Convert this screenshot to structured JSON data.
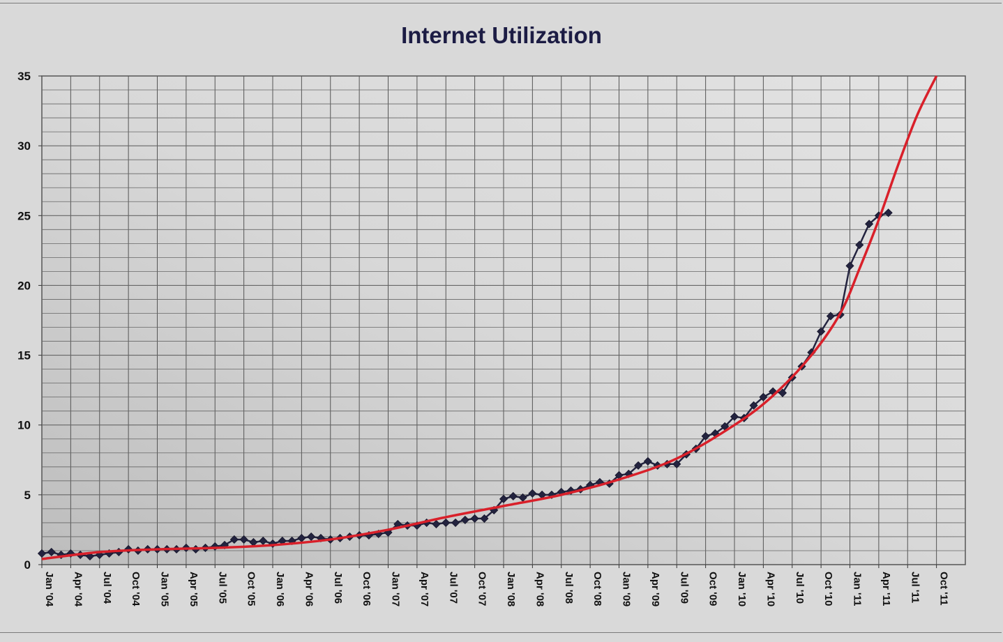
{
  "chart_data": {
    "type": "line",
    "title": "Internet Utilization",
    "xlabel": "",
    "ylabel": "",
    "ylim": [
      0,
      35
    ],
    "yticks": [
      0,
      5,
      10,
      15,
      20,
      25,
      30,
      35
    ],
    "xlim": [
      "2004-01",
      "2011-12"
    ],
    "x_tick_labels": [
      "Jan '04",
      "Apr '04",
      "Jul '04",
      "Oct '04",
      "Jan '05",
      "Apr '05",
      "Jul '05",
      "Oct '05",
      "Jan '06",
      "Apr '06",
      "Jul '06",
      "Oct '06",
      "Jan '07",
      "Apr '07",
      "Jul '07",
      "Oct '07",
      "Jan '08",
      "Apr '08",
      "Jul '08",
      "Oct '08",
      "Jan '09",
      "Apr '09",
      "Jul '09",
      "Oct '09",
      "Jan '10",
      "Apr '10",
      "Jul '10",
      "Oct '10",
      "Jan '11",
      "Apr '11",
      "Jul '11",
      "Oct '11"
    ],
    "grid": true,
    "legend": "none",
    "series": [
      {
        "color": "#23233f",
        "marker": "diamond",
        "x": [
          "2004-01",
          "2004-02",
          "2004-03",
          "2004-04",
          "2004-05",
          "2004-06",
          "2004-07",
          "2004-08",
          "2004-09",
          "2004-10",
          "2004-11",
          "2004-12",
          "2005-01",
          "2005-02",
          "2005-03",
          "2005-04",
          "2005-05",
          "2005-06",
          "2005-07",
          "2005-08",
          "2005-09",
          "2005-10",
          "2005-11",
          "2005-12",
          "2006-01",
          "2006-02",
          "2006-03",
          "2006-04",
          "2006-05",
          "2006-06",
          "2006-07",
          "2006-08",
          "2006-09",
          "2006-10",
          "2006-11",
          "2006-12",
          "2007-01",
          "2007-02",
          "2007-03",
          "2007-04",
          "2007-05",
          "2007-06",
          "2007-07",
          "2007-08",
          "2007-09",
          "2007-10",
          "2007-11",
          "2007-12",
          "2008-01",
          "2008-02",
          "2008-03",
          "2008-04",
          "2008-05",
          "2008-06",
          "2008-07",
          "2008-08",
          "2008-09",
          "2008-10",
          "2008-11",
          "2008-12",
          "2009-01",
          "2009-02",
          "2009-03",
          "2009-04",
          "2009-05",
          "2009-06",
          "2009-07",
          "2009-08",
          "2009-09",
          "2009-10",
          "2009-11",
          "2009-12",
          "2010-01",
          "2010-02",
          "2010-03",
          "2010-04",
          "2010-05",
          "2010-06",
          "2010-07",
          "2010-08",
          "2010-09",
          "2010-10",
          "2010-11",
          "2010-12",
          "2011-01",
          "2011-02",
          "2011-03",
          "2011-04",
          "2011-05"
        ],
        "values": [
          0.8,
          0.9,
          0.7,
          0.8,
          0.7,
          0.6,
          0.7,
          0.8,
          0.9,
          1.1,
          1.0,
          1.1,
          1.1,
          1.1,
          1.1,
          1.2,
          1.1,
          1.2,
          1.3,
          1.4,
          1.8,
          1.8,
          1.6,
          1.7,
          1.5,
          1.7,
          1.7,
          1.9,
          2.0,
          1.9,
          1.8,
          1.9,
          2.0,
          2.1,
          2.1,
          2.2,
          2.3,
          2.9,
          2.8,
          2.8,
          3.0,
          2.9,
          3.0,
          3.0,
          3.2,
          3.3,
          3.3,
          3.9,
          4.7,
          4.9,
          4.8,
          5.1,
          5.0,
          5.0,
          5.2,
          5.3,
          5.4,
          5.7,
          5.9,
          5.8,
          6.4,
          6.5,
          7.1,
          7.4,
          7.1,
          7.2,
          7.2,
          7.9,
          8.3,
          9.2,
          9.4,
          9.9,
          10.6,
          10.5,
          11.4,
          12.0,
          12.4,
          12.3,
          13.4,
          14.2,
          15.2,
          16.7,
          17.8,
          17.9,
          21.4,
          22.9,
          24.4,
          25.0,
          25.2
        ]
      },
      {
        "color": "#d9202a",
        "marker": "none",
        "x": [
          "2004-01",
          "2004-07",
          "2005-01",
          "2005-07",
          "2006-01",
          "2006-07",
          "2007-01",
          "2007-07",
          "2008-01",
          "2008-07",
          "2009-01",
          "2009-07",
          "2010-01",
          "2010-05",
          "2010-09",
          "2010-12",
          "2011-02",
          "2011-04",
          "2011-06",
          "2011-08",
          "2011-10"
        ],
        "values": [
          0.4,
          0.9,
          1.1,
          1.2,
          1.4,
          1.8,
          2.5,
          3.4,
          4.2,
          5.0,
          6.1,
          7.6,
          10.0,
          12.1,
          15.0,
          18.0,
          21.2,
          24.7,
          28.6,
          32.2,
          35.0
        ]
      }
    ]
  }
}
